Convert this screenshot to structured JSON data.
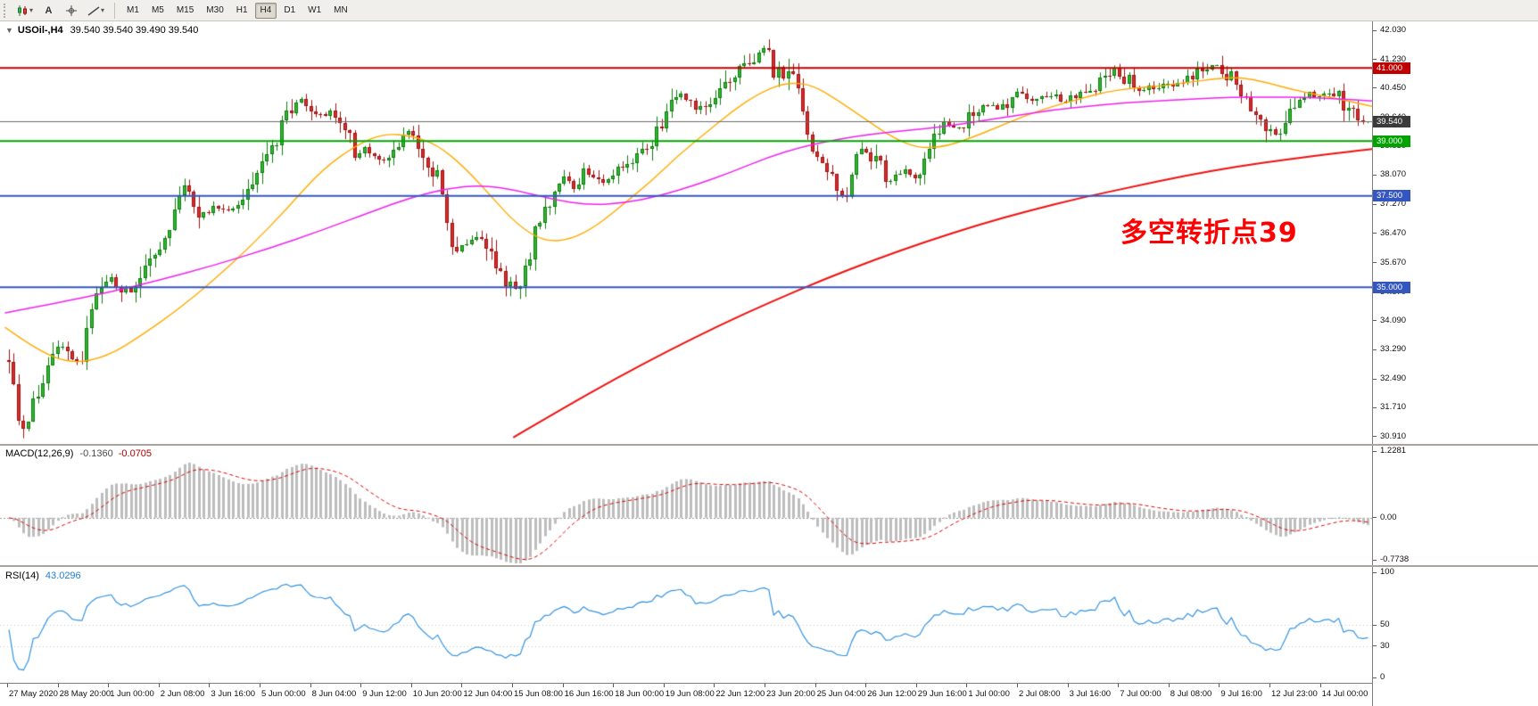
{
  "ui": {
    "toolbar": {
      "icons": [
        {
          "name": "chart-type-button",
          "icon": "candlestick-chart-icon",
          "kind": "candles",
          "dropdown": true
        },
        {
          "name": "text-tool-button",
          "icon": "text-tool-icon",
          "kind": "glyph",
          "glyph": "A"
        },
        {
          "name": "crosshair-tool-button",
          "icon": "crosshair-icon",
          "kind": "crosshair"
        },
        {
          "name": "draw-tools-button",
          "icon": "trendline-icon",
          "kind": "trendline",
          "dropdown": true
        }
      ],
      "timeframes": [
        "M1",
        "M5",
        "M15",
        "M30",
        "H1",
        "H4",
        "D1",
        "W1",
        "MN"
      ],
      "active_timeframe": "H4"
    },
    "header": {
      "collapse_icon": "▼",
      "title": "USOil-,H4",
      "ohlc": "39.540 39.540 39.490 39.540"
    },
    "annotation": {
      "text": "多空转折点39",
      "color": "#ff0000"
    },
    "macd_header": {
      "name": "MACD(12,26,9)",
      "value_main": "-0.1360",
      "value_signal": "-0.0705"
    },
    "rsi_header": {
      "name": "RSI(14)",
      "value": "43.0296"
    }
  },
  "chart_data": {
    "type": "candlestick",
    "symbol": "USOil",
    "period": "H4",
    "bars": 280,
    "last_bar": {
      "open": 39.54,
      "high": 39.54,
      "low": 39.49,
      "close": 39.54
    },
    "price_ticks": [
      "42.030",
      "41.230",
      "40.450",
      "39.640",
      "38.850",
      "38.070",
      "37.270",
      "36.470",
      "35.670",
      "34.870",
      "34.090",
      "33.290",
      "32.490",
      "31.710",
      "30.910"
    ],
    "levels": [
      {
        "price": 41.0,
        "label": "41.000",
        "color": "#c00000",
        "width": 2,
        "tag_bg": "#c00000"
      },
      {
        "price": 39.54,
        "label": "39.540",
        "color": "#6b6b6b",
        "width": 1,
        "tag_bg": "#3a3a3a",
        "current": true
      },
      {
        "price": 39.0,
        "label": "39.000",
        "color": "#00a400",
        "width": 2,
        "tag_bg": "#00a400"
      },
      {
        "price": 37.5,
        "label": "37.500",
        "color": "#3456c0",
        "width": 2,
        "tag_bg": "#3456c0"
      },
      {
        "price": 35.0,
        "label": "35.000",
        "color": "#3456c0",
        "width": 2,
        "tag_bg": "#3456c0"
      }
    ],
    "time_labels": [
      "27 May 2020",
      "28 May 20:00",
      "1 Jun 00:00",
      "2 Jun 08:00",
      "3 Jun 16:00",
      "5 Jun 00:00",
      "8 Jun 04:00",
      "9 Jun 12:00",
      "10 Jun 20:00",
      "12 Jun 04:00",
      "15 Jun 08:00",
      "16 Jun 16:00",
      "18 Jun 00:00",
      "19 Jun 08:00",
      "22 Jun 12:00",
      "23 Jun 20:00",
      "25 Jun 04:00",
      "26 Jun 12:00",
      "29 Jun 16:00",
      "1 Jul 00:00",
      "2 Jul 08:00",
      "3 Jul 16:00",
      "7 Jul 00:00",
      "8 Jul 08:00",
      "9 Jul 16:00",
      "12 Jul 23:00",
      "14 Jul 00:00"
    ],
    "candle_colors": {
      "bull_fill": "#2eb82e",
      "bull_border": "#0e7a0e",
      "bear_fill": "#dd2a2a",
      "bear_border": "#9b1313"
    },
    "price_path": [
      [
        8,
        33.2
      ],
      [
        16,
        32.2
      ],
      [
        24,
        31.2
      ],
      [
        34,
        31.6
      ],
      [
        46,
        32.4
      ],
      [
        58,
        33.1
      ],
      [
        68,
        33.5
      ],
      [
        80,
        33.1
      ],
      [
        90,
        32.6
      ],
      [
        98,
        33.9
      ],
      [
        106,
        34.8
      ],
      [
        116,
        35.1
      ],
      [
        124,
        35.3
      ],
      [
        136,
        35.0
      ],
      [
        148,
        34.8
      ],
      [
        160,
        35.3
      ],
      [
        172,
        35.9
      ],
      [
        184,
        36.4
      ],
      [
        196,
        37.0
      ],
      [
        208,
        37.9
      ],
      [
        218,
        37.3
      ],
      [
        230,
        36.9
      ],
      [
        244,
        37.2
      ],
      [
        258,
        37.1
      ],
      [
        272,
        37.4
      ],
      [
        286,
        37.8
      ],
      [
        300,
        38.5
      ],
      [
        314,
        39.3
      ],
      [
        326,
        39.9
      ],
      [
        338,
        40.2
      ],
      [
        350,
        39.9
      ],
      [
        362,
        39.7
      ],
      [
        374,
        39.9
      ],
      [
        386,
        39.4
      ],
      [
        398,
        38.7
      ],
      [
        410,
        38.8
      ],
      [
        422,
        38.6
      ],
      [
        434,
        38.4
      ],
      [
        446,
        38.8
      ],
      [
        458,
        39.2
      ],
      [
        468,
        38.8
      ],
      [
        478,
        38.3
      ],
      [
        488,
        38.2
      ],
      [
        497,
        37.7
      ],
      [
        506,
        36.0
      ],
      [
        516,
        36.0
      ],
      [
        526,
        36.3
      ],
      [
        536,
        36.4
      ],
      [
        548,
        36.0
      ],
      [
        560,
        35.5
      ],
      [
        572,
        35.0
      ],
      [
        582,
        34.9
      ],
      [
        592,
        35.8
      ],
      [
        602,
        36.7
      ],
      [
        612,
        37.1
      ],
      [
        622,
        37.6
      ],
      [
        632,
        38.0
      ],
      [
        644,
        37.8
      ],
      [
        656,
        38.2
      ],
      [
        668,
        38.1
      ],
      [
        680,
        37.9
      ],
      [
        692,
        38.1
      ],
      [
        704,
        38.3
      ],
      [
        716,
        38.5
      ],
      [
        728,
        39.0
      ],
      [
        740,
        39.5
      ],
      [
        752,
        39.9
      ],
      [
        762,
        40.4
      ],
      [
        772,
        40.0
      ],
      [
        784,
        39.9
      ],
      [
        796,
        40.1
      ],
      [
        808,
        40.4
      ],
      [
        820,
        40.8
      ],
      [
        832,
        41.1
      ],
      [
        844,
        41.2
      ],
      [
        856,
        41.6
      ],
      [
        866,
        41.0
      ],
      [
        878,
        40.8
      ],
      [
        890,
        40.6
      ],
      [
        900,
        39.9
      ],
      [
        908,
        38.9
      ],
      [
        918,
        38.4
      ],
      [
        928,
        38.2
      ],
      [
        938,
        37.6
      ],
      [
        948,
        37.4
      ],
      [
        958,
        38.3
      ],
      [
        968,
        38.8
      ],
      [
        978,
        38.6
      ],
      [
        988,
        38.2
      ],
      [
        1000,
        37.9
      ],
      [
        1012,
        38.2
      ],
      [
        1024,
        38.0
      ],
      [
        1036,
        38.4
      ],
      [
        1048,
        39.2
      ],
      [
        1058,
        39.5
      ],
      [
        1070,
        39.3
      ],
      [
        1082,
        39.6
      ],
      [
        1094,
        39.9
      ],
      [
        1106,
        40.0
      ],
      [
        1118,
        39.9
      ],
      [
        1130,
        40.1
      ],
      [
        1142,
        40.3
      ],
      [
        1154,
        40.0
      ],
      [
        1166,
        40.2
      ],
      [
        1178,
        40.3
      ],
      [
        1190,
        40.1
      ],
      [
        1202,
        40.2
      ],
      [
        1214,
        40.3
      ],
      [
        1226,
        40.5
      ],
      [
        1238,
        40.7
      ],
      [
        1250,
        41.0
      ],
      [
        1262,
        40.7
      ],
      [
        1274,
        40.4
      ],
      [
        1286,
        40.4
      ],
      [
        1298,
        40.5
      ],
      [
        1310,
        40.6
      ],
      [
        1322,
        40.6
      ],
      [
        1334,
        40.7
      ],
      [
        1346,
        40.9
      ],
      [
        1358,
        41.1
      ],
      [
        1370,
        40.9
      ],
      [
        1382,
        40.7
      ],
      [
        1394,
        40.3
      ],
      [
        1406,
        39.9
      ],
      [
        1418,
        39.5
      ],
      [
        1430,
        39.2
      ],
      [
        1442,
        39.5
      ],
      [
        1454,
        40.1
      ],
      [
        1466,
        40.3
      ],
      [
        1478,
        40.2
      ],
      [
        1490,
        40.4
      ],
      [
        1502,
        40.1
      ],
      [
        1514,
        39.8
      ],
      [
        1524,
        39.65
      ],
      [
        1534,
        39.54
      ]
    ],
    "moving_averages": [
      {
        "name": "ma-fast",
        "color": "#ffaa00",
        "width": 1.4,
        "anchors": [
          [
            6,
            33.9
          ],
          [
            40,
            33.3
          ],
          [
            80,
            32.9
          ],
          [
            120,
            33.1
          ],
          [
            160,
            33.7
          ],
          [
            200,
            34.4
          ],
          [
            240,
            35.2
          ],
          [
            280,
            36.1
          ],
          [
            320,
            37.1
          ],
          [
            360,
            38.2
          ],
          [
            400,
            38.9
          ],
          [
            430,
            39.2
          ],
          [
            460,
            39.15
          ],
          [
            490,
            38.9
          ],
          [
            520,
            38.3
          ],
          [
            550,
            37.5
          ],
          [
            580,
            36.7
          ],
          [
            610,
            36.25
          ],
          [
            640,
            36.3
          ],
          [
            670,
            36.7
          ],
          [
            700,
            37.3
          ],
          [
            730,
            37.9
          ],
          [
            760,
            38.6
          ],
          [
            790,
            39.2
          ],
          [
            820,
            39.8
          ],
          [
            850,
            40.3
          ],
          [
            880,
            40.6
          ],
          [
            910,
            40.55
          ],
          [
            940,
            40.1
          ],
          [
            970,
            39.6
          ],
          [
            1000,
            39.1
          ],
          [
            1030,
            38.8
          ],
          [
            1060,
            38.85
          ],
          [
            1090,
            39.1
          ],
          [
            1120,
            39.4
          ],
          [
            1150,
            39.7
          ],
          [
            1180,
            39.95
          ],
          [
            1210,
            40.15
          ],
          [
            1240,
            40.35
          ],
          [
            1270,
            40.45
          ],
          [
            1300,
            40.5
          ],
          [
            1330,
            40.6
          ],
          [
            1360,
            40.7
          ],
          [
            1390,
            40.75
          ],
          [
            1420,
            40.6
          ],
          [
            1450,
            40.4
          ],
          [
            1480,
            40.25
          ],
          [
            1510,
            40.1
          ],
          [
            1538,
            39.95
          ]
        ]
      },
      {
        "name": "ma-medium",
        "color": "#ee22ee",
        "width": 1.5,
        "anchors": [
          [
            6,
            34.3
          ],
          [
            60,
            34.55
          ],
          [
            120,
            34.85
          ],
          [
            180,
            35.2
          ],
          [
            240,
            35.6
          ],
          [
            300,
            36.05
          ],
          [
            360,
            36.55
          ],
          [
            420,
            37.1
          ],
          [
            460,
            37.45
          ],
          [
            500,
            37.7
          ],
          [
            540,
            37.8
          ],
          [
            580,
            37.65
          ],
          [
            620,
            37.4
          ],
          [
            660,
            37.25
          ],
          [
            700,
            37.3
          ],
          [
            740,
            37.5
          ],
          [
            780,
            37.8
          ],
          [
            820,
            38.15
          ],
          [
            860,
            38.55
          ],
          [
            900,
            38.85
          ],
          [
            940,
            39.05
          ],
          [
            980,
            39.2
          ],
          [
            1020,
            39.3
          ],
          [
            1060,
            39.4
          ],
          [
            1100,
            39.55
          ],
          [
            1140,
            39.7
          ],
          [
            1180,
            39.85
          ],
          [
            1220,
            39.95
          ],
          [
            1260,
            40.05
          ],
          [
            1300,
            40.1
          ],
          [
            1340,
            40.15
          ],
          [
            1380,
            40.2
          ],
          [
            1420,
            40.2
          ],
          [
            1460,
            40.2
          ],
          [
            1500,
            40.15
          ],
          [
            1538,
            40.1
          ]
        ]
      },
      {
        "name": "ma-slow",
        "color": "#ee1111",
        "width": 2,
        "anchors": [
          [
            576,
            30.9
          ],
          [
            632,
            31.7
          ],
          [
            690,
            32.5
          ],
          [
            748,
            33.25
          ],
          [
            806,
            33.95
          ],
          [
            864,
            34.6
          ],
          [
            922,
            35.2
          ],
          [
            980,
            35.75
          ],
          [
            1038,
            36.25
          ],
          [
            1096,
            36.7
          ],
          [
            1154,
            37.1
          ],
          [
            1212,
            37.45
          ],
          [
            1270,
            37.75
          ],
          [
            1328,
            38.05
          ],
          [
            1386,
            38.3
          ],
          [
            1444,
            38.5
          ],
          [
            1502,
            38.68
          ],
          [
            1538,
            38.78
          ]
        ]
      }
    ],
    "macd": {
      "params": [
        12,
        26,
        9
      ],
      "hist_color": "#bdbdbd",
      "signal_color": "#dd0000",
      "scale": {
        "top": 1.2281,
        "zero": 0,
        "bottom": -0.7738
      },
      "scale_labels": [
        "1.2281",
        "0.00",
        "-0.7738"
      ],
      "current_values": [
        -0.136,
        -0.0705
      ]
    },
    "rsi": {
      "period": 14,
      "color": "#3392e0",
      "scale_labels": [
        "100",
        "50",
        "30",
        "0"
      ],
      "levels": [
        50,
        30
      ],
      "current": 43.0296
    }
  }
}
